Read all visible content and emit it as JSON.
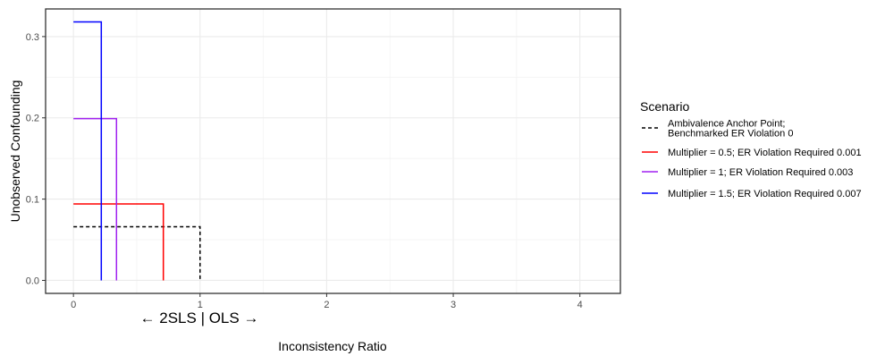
{
  "chart_data": {
    "type": "line",
    "xlabel": "Inconsistency Ratio",
    "ylabel": "Unobserved Confounding",
    "xlim": [
      -0.22,
      4.32
    ],
    "ylim": [
      -0.016,
      0.334
    ],
    "x_ticks": [
      0,
      1,
      2,
      3,
      4
    ],
    "y_ticks": [
      0.0,
      0.1,
      0.2,
      0.3
    ],
    "x_tick_labels": [
      "0",
      "1",
      "2",
      "3",
      "4"
    ],
    "y_tick_labels": [
      "0.0",
      "0.1",
      "0.2",
      "0.3"
    ],
    "annotation": "← 2SLS | OLS →",
    "grid": true,
    "legend_position": "right",
    "legend": {
      "title": "Scenario",
      "entries": [
        {
          "label_lines": [
            "Ambivalence Anchor Point;",
            "Benchmarked ER Violation 0"
          ],
          "color": "#000000",
          "dashed": true
        },
        {
          "label_lines": [
            "Multiplier = 0.5; ER Violation Required 0.001"
          ],
          "color": "#ff0000",
          "dashed": false
        },
        {
          "label_lines": [
            "Multiplier = 1; ER Violation Required 0.003"
          ],
          "color": "#a020f0",
          "dashed": false
        },
        {
          "label_lines": [
            "Multiplier = 1.5; ER Violation Required 0.007"
          ],
          "color": "#0000ff",
          "dashed": false
        }
      ]
    },
    "series": [
      {
        "name": "Ambivalence Anchor Point; Benchmarked ER Violation 0",
        "color": "#000000",
        "dashed": true,
        "points": [
          [
            0,
            0.066
          ],
          [
            1.0,
            0.066
          ],
          [
            1.0,
            0.0
          ]
        ]
      },
      {
        "name": "Multiplier = 0.5; ER Violation Required 0.001",
        "color": "#ff0000",
        "dashed": false,
        "points": [
          [
            0,
            0.094
          ],
          [
            0.71,
            0.094
          ],
          [
            0.71,
            0.0
          ]
        ]
      },
      {
        "name": "Multiplier = 1; ER Violation Required 0.003",
        "color": "#a020f0",
        "dashed": false,
        "points": [
          [
            0,
            0.199
          ],
          [
            0.34,
            0.199
          ],
          [
            0.34,
            0.0
          ]
        ]
      },
      {
        "name": "Multiplier = 1.5; ER Violation Required 0.007",
        "color": "#0000ff",
        "dashed": false,
        "points": [
          [
            0,
            0.318
          ],
          [
            0.22,
            0.318
          ],
          [
            0.22,
            0.0
          ]
        ]
      }
    ]
  }
}
